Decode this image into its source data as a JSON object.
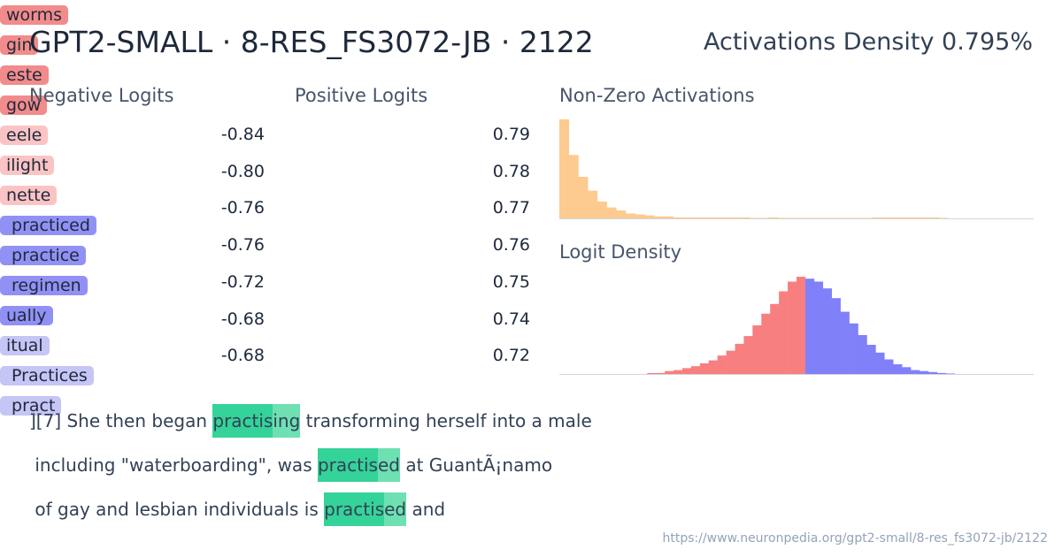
{
  "title": "GPT2-SMALL · 8-RES_FS3072-JB · 2122",
  "activations_density": "Activations Density 0.795%",
  "negative_logits": {
    "heading": "Negative Logits",
    "rows": [
      {
        "token": "worms",
        "logit": "-0.84",
        "color": "#f28b8b"
      },
      {
        "token": "gin",
        "logit": "-0.80",
        "color": "#f28b8b"
      },
      {
        "token": "este",
        "logit": "-0.76",
        "color": "#f28b8b"
      },
      {
        "token": "gow",
        "logit": "-0.76",
        "color": "#f28b8b"
      },
      {
        "token": "eele",
        "logit": "-0.72",
        "color": "#fbc4c4"
      },
      {
        "token": "ilight",
        "logit": "-0.68",
        "color": "#fbc4c4"
      },
      {
        "token": "nette",
        "logit": "-0.68",
        "color": "#fbc4c4"
      }
    ]
  },
  "positive_logits": {
    "heading": "Positive Logits",
    "rows": [
      {
        "token": " practiced",
        "logit": "0.79",
        "color": "#9191f5"
      },
      {
        "token": " practice",
        "logit": "0.78",
        "color": "#9191f5"
      },
      {
        "token": " regimen",
        "logit": "0.77",
        "color": "#9191f5"
      },
      {
        "token": "ually",
        "logit": "0.76",
        "color": "#9191f5"
      },
      {
        "token": "itual",
        "logit": "0.75",
        "color": "#c5c5f6"
      },
      {
        "token": " Practices",
        "logit": "0.74",
        "color": "#c5c5f6"
      },
      {
        "token": " pract",
        "logit": "0.72",
        "color": "#c5c5f6"
      }
    ]
  },
  "non_zero_activations": {
    "heading": "Non-Zero Activations",
    "color": "#fdca8f",
    "values": [
      100,
      64,
      42,
      28,
      17,
      11,
      8,
      5,
      4,
      3,
      2,
      2,
      1,
      1,
      1,
      1,
      1,
      1,
      1,
      1,
      0.5,
      0.5,
      1,
      0.5,
      0.5,
      0.5,
      0.5,
      0.5,
      0.5,
      0.5,
      0.5,
      0.5,
      0.5,
      1,
      1,
      1,
      1,
      1,
      1,
      1,
      0.5,
      0,
      0,
      0,
      0,
      0,
      0,
      0,
      0,
      0
    ]
  },
  "logit_density": {
    "heading": "Logit Density",
    "series": [
      {
        "color": "#f87f7f",
        "values": [
          0,
          0,
          0,
          0,
          0,
          0,
          0,
          0,
          0,
          0,
          1,
          1,
          3,
          4,
          6,
          8,
          11,
          14,
          19,
          24,
          31,
          39,
          50,
          62,
          72,
          85,
          95,
          100
        ]
      },
      {
        "color": "#8080f8",
        "values": [
          98,
          95,
          88,
          78,
          64,
          52,
          40,
          30,
          22,
          15,
          10,
          7,
          4,
          3,
          2,
          1,
          0.5,
          0,
          0,
          0,
          0,
          0,
          0,
          0,
          0,
          0
        ]
      }
    ]
  },
  "examples": [
    [
      {
        "text": "][7] She then began "
      },
      {
        "text": "practis",
        "color": "#34d399"
      },
      {
        "text": "ing",
        "color": "#6ee0b2"
      },
      {
        "text": " transforming herself into a male"
      }
    ],
    [
      {
        "text": " including \"waterboarding\", was "
      },
      {
        "text": "practis",
        "color": "#34d399"
      },
      {
        "text": "ed",
        "color": "#6ee0b2"
      },
      {
        "text": " at GuantÃ¡namo"
      }
    ],
    [
      {
        "text": " of gay and lesbian individuals is "
      },
      {
        "text": "practis",
        "color": "#34d399"
      },
      {
        "text": "ed",
        "color": "#6ee0b2"
      },
      {
        "text": " and"
      }
    ]
  ],
  "url": "https://www.neuronpedia.org/gpt2-small/8-res_fs3072-jb/2122"
}
